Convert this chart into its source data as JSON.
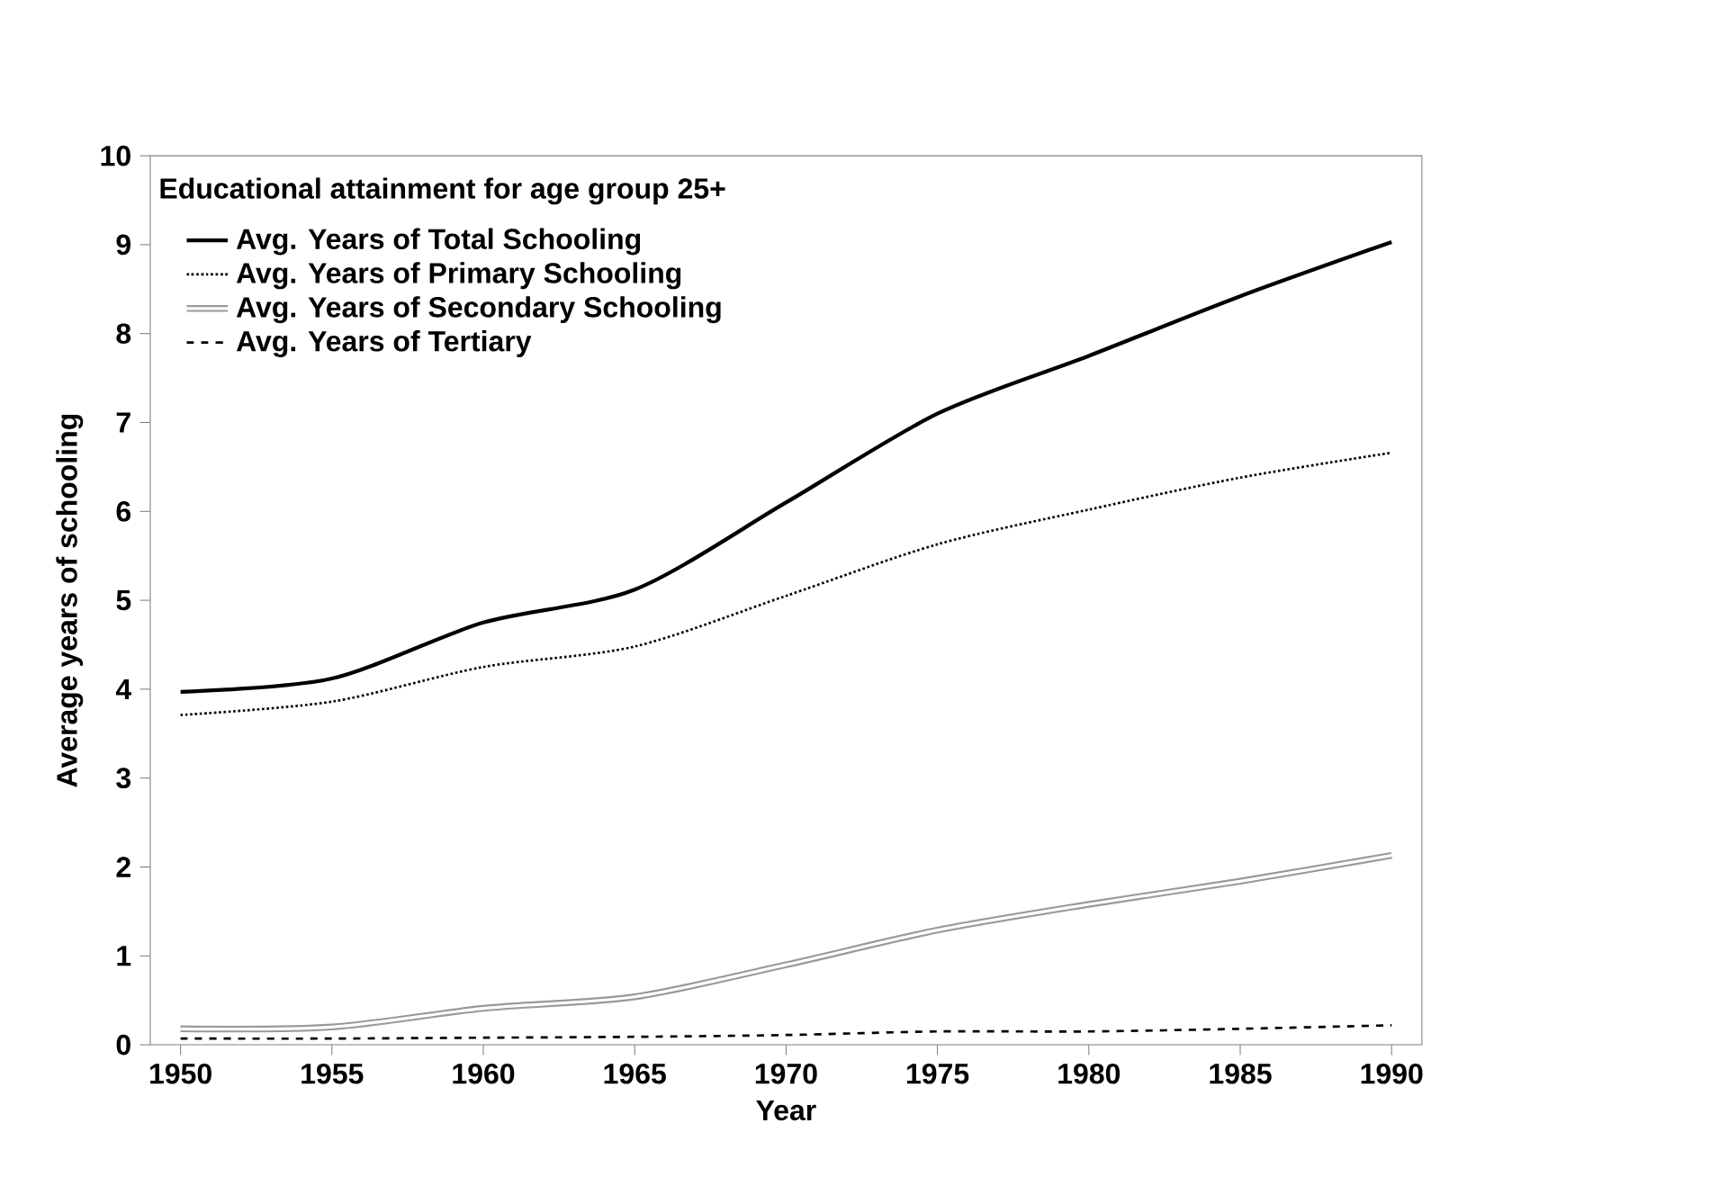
{
  "chart_data": {
    "type": "line",
    "xlabel": "Year",
    "ylabel": "Average years of schooling",
    "legend_title": "Educational attainment for age group 25+",
    "x": [
      1950,
      1955,
      1960,
      1965,
      1970,
      1975,
      1980,
      1985,
      1990
    ],
    "series": [
      {
        "name": "Avg. Years of Total Schooling",
        "color": "#000000",
        "line_style": "solid",
        "values": [
          3.97,
          4.12,
          4.75,
          5.12,
          6.1,
          7.1,
          7.75,
          8.42,
          9.03
        ]
      },
      {
        "name": "Avg. Years of Primary Schooling",
        "color": "#000000",
        "line_style": "dotted",
        "values": [
          3.71,
          3.86,
          4.25,
          4.48,
          5.05,
          5.63,
          6.02,
          6.38,
          6.66
        ]
      },
      {
        "name": "Avg. Years of Secondary Schooling",
        "color": "#999999",
        "line_style": "solid",
        "values": [
          0.18,
          0.2,
          0.41,
          0.54,
          0.9,
          1.29,
          1.58,
          1.84,
          2.13
        ]
      },
      {
        "name": "Avg. Years of Tertiary",
        "color": "#000000",
        "line_style": "dashed",
        "values": [
          0.07,
          0.07,
          0.08,
          0.09,
          0.11,
          0.15,
          0.15,
          0.18,
          0.22
        ]
      }
    ],
    "xlim": [
      1949,
      1991
    ],
    "xticks": [
      1950,
      1955,
      1960,
      1965,
      1970,
      1975,
      1980,
      1985,
      1990
    ],
    "ylim": [
      0,
      10
    ],
    "yticks": [
      0,
      1,
      2,
      3,
      4,
      5,
      6,
      7,
      8,
      9,
      10
    ],
    "legend": "top left",
    "grid": false,
    "marker": "none"
  }
}
